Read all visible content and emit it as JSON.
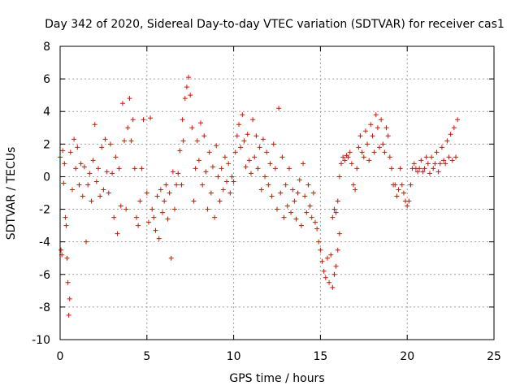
{
  "chart_data": {
    "type": "scatter",
    "title": "Day 342 of 2020, Sidereal Day-to-day VTEC variation (SDTVAR) for receiver cas1",
    "xlabel": "GPS time / hours",
    "ylabel": "SDTVAR / TECUs",
    "xlim": [
      0,
      25
    ],
    "ylim": [
      -10,
      8
    ],
    "xticks": [
      0,
      5,
      10,
      15,
      20,
      25
    ],
    "yticks": [
      -10,
      -8,
      -6,
      -4,
      -2,
      0,
      2,
      4,
      6,
      8
    ],
    "x_tick_labels": [
      "0",
      "5",
      "10",
      "15",
      "20",
      "25"
    ],
    "y_tick_labels": [
      "-10",
      "-8",
      "-6",
      "-4",
      "-2",
      "0",
      "2",
      "4",
      "6",
      "8"
    ],
    "grid": true,
    "marker": "plus",
    "color": "#ff0000",
    "series": [
      {
        "name": "cas1",
        "points": [
          [
            0.0,
            1.2
          ],
          [
            0.05,
            -4.5
          ],
          [
            0.1,
            -4.8
          ],
          [
            0.15,
            1.6
          ],
          [
            0.2,
            -0.4
          ],
          [
            0.25,
            0.8
          ],
          [
            0.3,
            -2.5
          ],
          [
            0.35,
            -3.0
          ],
          [
            0.4,
            -5.0
          ],
          [
            0.45,
            -6.5
          ],
          [
            0.5,
            -8.5
          ],
          [
            0.55,
            -7.5
          ],
          [
            0.6,
            1.5
          ],
          [
            0.7,
            -0.8
          ],
          [
            0.8,
            2.3
          ],
          [
            0.9,
            0.5
          ],
          [
            1.0,
            1.8
          ],
          [
            1.1,
            -0.5
          ],
          [
            1.2,
            0.8
          ],
          [
            1.3,
            -1.2
          ],
          [
            1.4,
            0.6
          ],
          [
            1.5,
            -4.0
          ],
          [
            1.6,
            -0.5
          ],
          [
            1.7,
            0.2
          ],
          [
            1.8,
            -1.5
          ],
          [
            1.9,
            1.0
          ],
          [
            2.0,
            3.2
          ],
          [
            2.1,
            -0.3
          ],
          [
            2.2,
            0.5
          ],
          [
            2.3,
            -1.2
          ],
          [
            2.4,
            1.8
          ],
          [
            2.5,
            -0.8
          ],
          [
            2.6,
            2.3
          ],
          [
            2.7,
            0.3
          ],
          [
            2.8,
            -1.0
          ],
          [
            2.9,
            2.0
          ],
          [
            3.0,
            0.2
          ],
          [
            3.1,
            -2.5
          ],
          [
            3.2,
            1.2
          ],
          [
            3.3,
            -3.5
          ],
          [
            3.4,
            0.5
          ],
          [
            3.5,
            -1.8
          ],
          [
            3.6,
            4.5
          ],
          [
            3.7,
            2.2
          ],
          [
            3.8,
            -2.0
          ],
          [
            3.9,
            3.0
          ],
          [
            4.0,
            4.8
          ],
          [
            4.1,
            2.2
          ],
          [
            4.2,
            3.5
          ],
          [
            4.3,
            0.5
          ],
          [
            4.4,
            -2.5
          ],
          [
            4.5,
            -3.0
          ],
          [
            4.6,
            -1.5
          ],
          [
            4.7,
            0.5
          ],
          [
            4.8,
            3.5
          ],
          [
            5.0,
            -1.0
          ],
          [
            5.1,
            -2.8
          ],
          [
            5.2,
            3.6
          ],
          [
            5.3,
            -2.0
          ],
          [
            5.4,
            -2.5
          ],
          [
            5.5,
            -3.3
          ],
          [
            5.6,
            -1.2
          ],
          [
            5.7,
            -3.8
          ],
          [
            5.8,
            -0.8
          ],
          [
            5.9,
            -2.2
          ],
          [
            6.0,
            -1.5
          ],
          [
            6.1,
            -0.5
          ],
          [
            6.2,
            -2.6
          ],
          [
            6.3,
            -1.0
          ],
          [
            6.4,
            -5.0
          ],
          [
            6.5,
            0.3
          ],
          [
            6.6,
            -2.0
          ],
          [
            6.7,
            -0.5
          ],
          [
            6.8,
            0.2
          ],
          [
            6.9,
            1.6
          ],
          [
            7.0,
            -0.5
          ],
          [
            7.05,
            3.5
          ],
          [
            7.1,
            2.2
          ],
          [
            7.2,
            4.8
          ],
          [
            7.3,
            5.5
          ],
          [
            7.4,
            6.1
          ],
          [
            7.5,
            5.0
          ],
          [
            7.6,
            3.0
          ],
          [
            7.7,
            -1.5
          ],
          [
            7.8,
            0.5
          ],
          [
            7.9,
            2.2
          ],
          [
            8.0,
            1.0
          ],
          [
            8.1,
            3.3
          ],
          [
            8.2,
            -0.5
          ],
          [
            8.3,
            2.5
          ],
          [
            8.4,
            0.3
          ],
          [
            8.5,
            -2.0
          ],
          [
            8.6,
            1.5
          ],
          [
            8.7,
            -1.0
          ],
          [
            8.8,
            0.6
          ],
          [
            8.9,
            -2.5
          ],
          [
            9.0,
            1.9
          ],
          [
            9.1,
            0.0
          ],
          [
            9.2,
            -1.5
          ],
          [
            9.3,
            0.5
          ],
          [
            9.4,
            -0.8
          ],
          [
            9.5,
            1.2
          ],
          [
            9.6,
            -0.3
          ],
          [
            9.7,
            0.8
          ],
          [
            9.8,
            -1.0
          ],
          [
            9.9,
            0.0
          ],
          [
            10.0,
            -0.3
          ],
          [
            10.1,
            1.5
          ],
          [
            10.2,
            2.5
          ],
          [
            10.3,
            3.2
          ],
          [
            10.4,
            1.8
          ],
          [
            10.5,
            3.8
          ],
          [
            10.6,
            2.2
          ],
          [
            10.7,
            0.6
          ],
          [
            10.8,
            2.6
          ],
          [
            10.9,
            1.0
          ],
          [
            11.0,
            0.2
          ],
          [
            11.1,
            3.5
          ],
          [
            11.2,
            1.2
          ],
          [
            11.3,
            2.5
          ],
          [
            11.4,
            0.5
          ],
          [
            11.5,
            1.8
          ],
          [
            11.6,
            -0.8
          ],
          [
            11.7,
            2.3
          ],
          [
            11.8,
            0.0
          ],
          [
            11.9,
            1.5
          ],
          [
            12.0,
            -0.5
          ],
          [
            12.1,
            0.8
          ],
          [
            12.2,
            -1.2
          ],
          [
            12.3,
            2.0
          ],
          [
            12.4,
            0.5
          ],
          [
            12.5,
            -2.0
          ],
          [
            12.6,
            4.2
          ],
          [
            12.7,
            -1.0
          ],
          [
            12.8,
            1.2
          ],
          [
            12.9,
            -2.5
          ],
          [
            13.0,
            -0.5
          ],
          [
            13.1,
            -1.8
          ],
          [
            13.2,
            0.5
          ],
          [
            13.3,
            -2.2
          ],
          [
            13.4,
            -0.8
          ],
          [
            13.5,
            -1.5
          ],
          [
            13.6,
            -2.6
          ],
          [
            13.7,
            -1.0
          ],
          [
            13.8,
            -0.2
          ],
          [
            13.9,
            -3.0
          ],
          [
            14.0,
            0.8
          ],
          [
            14.1,
            -1.2
          ],
          [
            14.2,
            -2.2
          ],
          [
            14.3,
            -0.5
          ],
          [
            14.4,
            -1.8
          ],
          [
            14.5,
            -2.5
          ],
          [
            14.6,
            -1.0
          ],
          [
            14.7,
            -2.8
          ],
          [
            14.8,
            -3.2
          ],
          [
            14.9,
            -4.0
          ],
          [
            15.0,
            -4.5
          ],
          [
            15.1,
            -5.2
          ],
          [
            15.2,
            -5.8
          ],
          [
            15.3,
            -6.2
          ],
          [
            15.4,
            -5.0
          ],
          [
            15.5,
            -6.5
          ],
          [
            15.6,
            -4.8
          ],
          [
            15.7,
            -6.8
          ],
          [
            15.8,
            -6.0
          ],
          [
            15.9,
            -5.5
          ],
          [
            16.0,
            -4.5
          ],
          [
            16.1,
            -3.5
          ],
          [
            15.7,
            -2.5
          ],
          [
            15.8,
            -2.0
          ],
          [
            15.9,
            -2.2
          ],
          [
            16.0,
            -1.5
          ],
          [
            16.1,
            0.0
          ],
          [
            16.2,
            0.8
          ],
          [
            16.3,
            1.2
          ],
          [
            16.4,
            1.0
          ],
          [
            16.5,
            1.3
          ],
          [
            16.6,
            1.2
          ],
          [
            16.7,
            1.5
          ],
          [
            16.8,
            0.8
          ],
          [
            16.9,
            -0.5
          ],
          [
            17.0,
            -0.8
          ],
          [
            17.1,
            0.5
          ],
          [
            17.2,
            1.8
          ],
          [
            17.3,
            2.5
          ],
          [
            17.4,
            1.5
          ],
          [
            17.5,
            1.2
          ],
          [
            17.6,
            2.8
          ],
          [
            17.7,
            2.0
          ],
          [
            17.8,
            1.0
          ],
          [
            17.9,
            3.2
          ],
          [
            18.0,
            2.5
          ],
          [
            18.1,
            1.5
          ],
          [
            18.2,
            3.8
          ],
          [
            18.3,
            3.0
          ],
          [
            18.4,
            1.8
          ],
          [
            18.5,
            3.5
          ],
          [
            18.6,
            2.0
          ],
          [
            18.7,
            1.5
          ],
          [
            18.8,
            3.0
          ],
          [
            18.9,
            2.5
          ],
          [
            19.0,
            1.2
          ],
          [
            19.1,
            0.5
          ],
          [
            19.2,
            -0.5
          ],
          [
            19.3,
            -0.5
          ],
          [
            19.4,
            -1.2
          ],
          [
            19.5,
            -0.8
          ],
          [
            19.6,
            0.5
          ],
          [
            19.7,
            -0.5
          ],
          [
            19.8,
            -1.0
          ],
          [
            19.9,
            -1.5
          ],
          [
            20.0,
            -1.8
          ],
          [
            20.1,
            -1.5
          ],
          [
            20.2,
            -0.5
          ],
          [
            20.3,
            0.5
          ],
          [
            20.4,
            0.8
          ],
          [
            20.5,
            0.5
          ],
          [
            20.6,
            0.3
          ],
          [
            20.7,
            0.5
          ],
          [
            20.8,
            1.0
          ],
          [
            20.9,
            0.3
          ],
          [
            21.0,
            0.5
          ],
          [
            21.1,
            1.2
          ],
          [
            21.2,
            0.8
          ],
          [
            21.3,
            0.2
          ],
          [
            21.4,
            1.2
          ],
          [
            21.5,
            0.5
          ],
          [
            21.6,
            0.8
          ],
          [
            21.7,
            1.5
          ],
          [
            21.8,
            0.3
          ],
          [
            21.9,
            0.8
          ],
          [
            22.0,
            1.8
          ],
          [
            22.1,
            1.0
          ],
          [
            22.2,
            0.8
          ],
          [
            22.3,
            2.2
          ],
          [
            22.4,
            1.2
          ],
          [
            22.5,
            2.6
          ],
          [
            22.6,
            1.0
          ],
          [
            22.7,
            3.0
          ],
          [
            22.8,
            1.2
          ],
          [
            22.9,
            3.5
          ]
        ]
      }
    ]
  }
}
